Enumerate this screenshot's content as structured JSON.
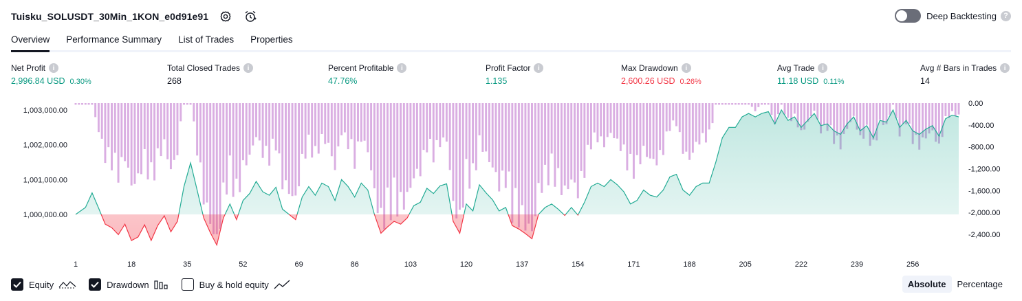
{
  "header": {
    "strategy_name": "Tuisku_SOLUSDT_30Min_1KON_e0d91e91",
    "settings_icon": "gear-icon",
    "alert_icon": "add-alert-icon"
  },
  "deep_backtesting": {
    "label": "Deep Backtesting",
    "enabled": false
  },
  "tabs": [
    {
      "label": "Overview",
      "active": true
    },
    {
      "label": "Performance Summary",
      "active": false
    },
    {
      "label": "List of Trades",
      "active": false
    },
    {
      "label": "Properties",
      "active": false
    }
  ],
  "metrics": {
    "net_profit": {
      "label": "Net Profit",
      "value": "2,996.84 USD",
      "pct": "0.30%"
    },
    "total_closed_trades": {
      "label": "Total Closed Trades",
      "value": "268"
    },
    "percent_profitable": {
      "label": "Percent Profitable",
      "value": "47.76%"
    },
    "profit_factor": {
      "label": "Profit Factor",
      "value": "1.135"
    },
    "max_drawdown": {
      "label": "Max Drawdown",
      "value": "2,600.26 USD",
      "pct": "0.26%"
    },
    "avg_trade": {
      "label": "Avg Trade",
      "value": "11.18 USD",
      "pct": "0.11%"
    },
    "avg_bars": {
      "label": "Avg # Bars in Trades",
      "value": "14"
    }
  },
  "chart_data": {
    "type": "line",
    "series": [
      {
        "name": "Equity",
        "type": "area",
        "color": "#22ab94"
      },
      {
        "name": "Drawdown",
        "type": "bar",
        "color": "#ce93d8"
      }
    ],
    "x_ticks": [
      "1",
      "18",
      "35",
      "52",
      "69",
      "86",
      "103",
      "120",
      "137",
      "154",
      "171",
      "188",
      "205",
      "222",
      "239",
      "256"
    ],
    "y_left_ticks": [
      "1,003,000.00",
      "1,002,000.00",
      "1,001,000.00",
      "1,000,000.00"
    ],
    "y_right_ticks": [
      "0.00",
      "-400.00",
      "-800.00",
      "-1,200.00",
      "-1,600.00",
      "-2,000.00",
      "-2,400.00"
    ],
    "equity_baseline": 1000000,
    "equity_range": [
      999100,
      1003200
    ],
    "drawdown_range": [
      -2600,
      0
    ],
    "equity": [
      [
        1,
        1000000
      ],
      [
        4,
        1000200
      ],
      [
        6,
        1000620
      ],
      [
        8,
        1000180
      ],
      [
        10,
        999720
      ],
      [
        12,
        999620
      ],
      [
        14,
        999420
      ],
      [
        16,
        999720
      ],
      [
        18,
        999250
      ],
      [
        20,
        999350
      ],
      [
        22,
        999700
      ],
      [
        24,
        999250
      ],
      [
        26,
        999680
      ],
      [
        28,
        999960
      ],
      [
        30,
        999500
      ],
      [
        32,
        999800
      ],
      [
        34,
        1000800
      ],
      [
        36,
        1001480
      ],
      [
        38,
        1000700
      ],
      [
        40,
        999900
      ],
      [
        42,
        999480
      ],
      [
        44,
        999120
      ],
      [
        46,
        999900
      ],
      [
        48,
        1000300
      ],
      [
        50,
        999850
      ],
      [
        52,
        1000400
      ],
      [
        54,
        1000600
      ],
      [
        56,
        1000950
      ],
      [
        58,
        1000650
      ],
      [
        60,
        1000550
      ],
      [
        62,
        1000780
      ],
      [
        64,
        1000150
      ],
      [
        66,
        1000000
      ],
      [
        68,
        999850
      ],
      [
        70,
        1000500
      ],
      [
        72,
        1000800
      ],
      [
        74,
        1000550
      ],
      [
        76,
        1000900
      ],
      [
        78,
        1000800
      ],
      [
        80,
        1000400
      ],
      [
        82,
        1001000
      ],
      [
        84,
        1000800
      ],
      [
        86,
        1000500
      ],
      [
        88,
        1000900
      ],
      [
        90,
        1000700
      ],
      [
        92,
        1000000
      ],
      [
        94,
        999460
      ],
      [
        96,
        999640
      ],
      [
        98,
        999800
      ],
      [
        100,
        999720
      ],
      [
        102,
        999900
      ],
      [
        104,
        1000250
      ],
      [
        106,
        1000350
      ],
      [
        108,
        1000750
      ],
      [
        110,
        1000600
      ],
      [
        112,
        1000820
      ],
      [
        114,
        1000880
      ],
      [
        116,
        999800
      ],
      [
        118,
        999460
      ],
      [
        120,
        1000300
      ],
      [
        122,
        1000100
      ],
      [
        124,
        1000850
      ],
      [
        126,
        1000620
      ],
      [
        128,
        1000420
      ],
      [
        130,
        1000100
      ],
      [
        132,
        1000200
      ],
      [
        134,
        999680
      ],
      [
        136,
        999580
      ],
      [
        138,
        999450
      ],
      [
        140,
        999300
      ],
      [
        142,
        1000000
      ],
      [
        144,
        1000200
      ],
      [
        146,
        1000300
      ],
      [
        148,
        1000150
      ],
      [
        150,
        999970
      ],
      [
        152,
        1000200
      ],
      [
        154,
        999980
      ],
      [
        156,
        1000350
      ],
      [
        158,
        1000800
      ],
      [
        160,
        1000900
      ],
      [
        162,
        1000800
      ],
      [
        164,
        1001000
      ],
      [
        166,
        1000850
      ],
      [
        168,
        1000650
      ],
      [
        170,
        1000300
      ],
      [
        172,
        1000400
      ],
      [
        174,
        1000700
      ],
      [
        176,
        1000550
      ],
      [
        178,
        1000500
      ],
      [
        180,
        1000700
      ],
      [
        182,
        1001080
      ],
      [
        184,
        1001150
      ],
      [
        186,
        1000700
      ],
      [
        188,
        1000550
      ],
      [
        190,
        1000800
      ],
      [
        192,
        1000900
      ],
      [
        194,
        1000900
      ],
      [
        196,
        1001500
      ],
      [
        198,
        1002200
      ],
      [
        200,
        1002500
      ],
      [
        202,
        1002500
      ],
      [
        204,
        1002800
      ],
      [
        206,
        1002900
      ],
      [
        208,
        1002800
      ],
      [
        210,
        1002900
      ],
      [
        212,
        1002950
      ],
      [
        214,
        1002600
      ],
      [
        216,
        1003000
      ],
      [
        218,
        1002700
      ],
      [
        220,
        1002800
      ],
      [
        222,
        1002500
      ],
      [
        224,
        1002700
      ],
      [
        226,
        1002900
      ],
      [
        228,
        1002550
      ],
      [
        230,
        1002600
      ],
      [
        232,
        1002400
      ],
      [
        234,
        1002300
      ],
      [
        236,
        1002600
      ],
      [
        238,
        1002800
      ],
      [
        240,
        1002400
      ],
      [
        242,
        1002550
      ],
      [
        244,
        1002200
      ],
      [
        246,
        1002700
      ],
      [
        248,
        1002650
      ],
      [
        250,
        1003000
      ],
      [
        252,
        1002500
      ],
      [
        254,
        1002700
      ],
      [
        256,
        1002400
      ],
      [
        258,
        1002300
      ],
      [
        260,
        1002450
      ],
      [
        262,
        1002550
      ],
      [
        264,
        1002250
      ],
      [
        266,
        1002750
      ],
      [
        268,
        1002850
      ],
      [
        270,
        1002800
      ]
    ]
  },
  "footer": {
    "equity_label": "Equity",
    "drawdown_label": "Drawdown",
    "buyhold_label": "Buy & hold equity",
    "equity_checked": true,
    "drawdown_checked": true,
    "buyhold_checked": false
  },
  "mode": {
    "absolute_label": "Absolute",
    "percentage_label": "Percentage",
    "active": "Absolute"
  },
  "colors": {
    "accent": "#131722",
    "positive": "#089981",
    "negative": "#f23645",
    "equity_line": "#22ab94",
    "drawdown_bar": "#ce93d8"
  }
}
